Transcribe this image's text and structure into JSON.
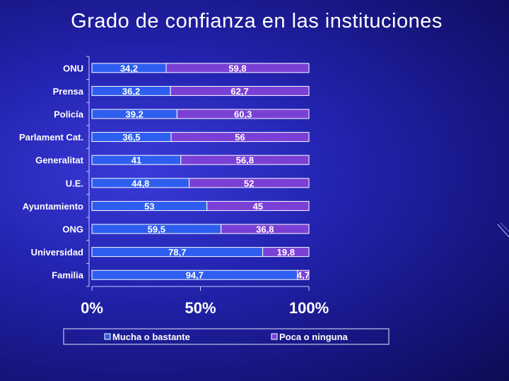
{
  "slide": {
    "title": "Grado de confianza en las instituciones"
  },
  "chart_data": {
    "type": "bar",
    "orientation": "horizontal",
    "stacked": "percent",
    "title": "Grado de confianza en las instituciones",
    "categories": [
      "ONU",
      "Prensa",
      "Policía",
      "Parlament Cat.",
      "Generalitat",
      "U.E.",
      "Ayuntamiento",
      "ONG",
      "Universidad",
      "Familia"
    ],
    "series": [
      {
        "name": "Mucha o bastante",
        "color": "#2e5ef0",
        "values": [
          34.2,
          36.2,
          39.2,
          36.5,
          41,
          44.8,
          53,
          59.5,
          78.7,
          94.7
        ],
        "labels": [
          "34,2",
          "36,2",
          "39,2",
          "36,5",
          "41",
          "44,8",
          "53",
          "59,5",
          "78,7",
          "94,7"
        ]
      },
      {
        "name": "Poca o ninguna",
        "color": "#7a40d6",
        "values": [
          59.8,
          62.7,
          60.3,
          56,
          56.8,
          52,
          45,
          36.8,
          19.8,
          4.7
        ],
        "labels": [
          "59,8",
          "62,7",
          "60,3",
          "56",
          "56,8",
          "52",
          "45",
          "36,8",
          "19,8",
          "4,7"
        ]
      }
    ],
    "xaxis": {
      "ticks": [
        "0%",
        "50%",
        "100%"
      ],
      "range": [
        0,
        100
      ]
    },
    "legend": "bottom"
  }
}
